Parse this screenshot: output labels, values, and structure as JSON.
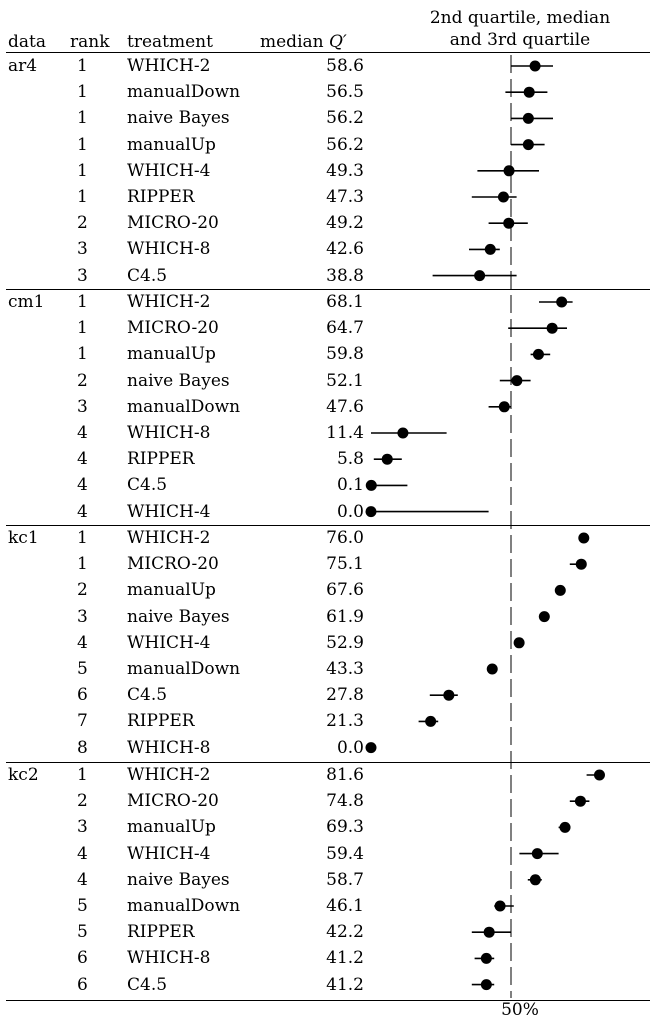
{
  "header": {
    "data": "data",
    "rank": "rank",
    "treatment": "treatment",
    "median_prefix": "median ",
    "median_var": "Q′",
    "quartile_line1": "2nd quartile, median",
    "quartile_line2": "and 3rd quartile"
  },
  "footer_label": "50%",
  "chart_data": {
    "type": "quartile-plot",
    "x_range": [
      0,
      100
    ],
    "reference_line": 50,
    "groups": [
      {
        "name": "ar4",
        "rows": [
          {
            "rank": "1",
            "treatment": "WHICH-2",
            "median": "58.6",
            "q1": 50,
            "q3": 65
          },
          {
            "rank": "1",
            "treatment": "manualDown",
            "median": "56.5",
            "q1": 48,
            "q3": 63
          },
          {
            "rank": "1",
            "treatment": "naive Bayes",
            "median": "56.2",
            "q1": 50,
            "q3": 65
          },
          {
            "rank": "1",
            "treatment": "manualUp",
            "median": "56.2",
            "q1": 50,
            "q3": 62
          },
          {
            "rank": "1",
            "treatment": "WHICH-4",
            "median": "49.3",
            "q1": 38,
            "q3": 60
          },
          {
            "rank": "1",
            "treatment": "RIPPER",
            "median": "47.3",
            "q1": 36,
            "q3": 52
          },
          {
            "rank": "2",
            "treatment": "MICRO-20",
            "median": "49.2",
            "q1": 42,
            "q3": 56
          },
          {
            "rank": "3",
            "treatment": "WHICH-8",
            "median": "42.6",
            "q1": 35,
            "q3": 46
          },
          {
            "rank": "3",
            "treatment": "C4.5",
            "median": "38.8",
            "q1": 22,
            "q3": 52
          }
        ]
      },
      {
        "name": "cm1",
        "rows": [
          {
            "rank": "1",
            "treatment": "WHICH-2",
            "median": "68.1",
            "q1": 60,
            "q3": 72
          },
          {
            "rank": "1",
            "treatment": "MICRO-20",
            "median": "64.7",
            "q1": 49,
            "q3": 70
          },
          {
            "rank": "1",
            "treatment": "manualUp",
            "median": "59.8",
            "q1": 57,
            "q3": 64
          },
          {
            "rank": "2",
            "treatment": "naive Bayes",
            "median": "52.1",
            "q1": 46,
            "q3": 57
          },
          {
            "rank": "3",
            "treatment": "manualDown",
            "median": "47.6",
            "q1": 42,
            "q3": 50
          },
          {
            "rank": "4",
            "treatment": "WHICH-8",
            "median": "11.4",
            "q1": 0,
            "q3": 27
          },
          {
            "rank": "4",
            "treatment": "RIPPER",
            "median": "5.8",
            "q1": 1,
            "q3": 11
          },
          {
            "rank": "4",
            "treatment": "C4.5",
            "median": "0.1",
            "q1": 0,
            "q3": 13
          },
          {
            "rank": "4",
            "treatment": "WHICH-4",
            "median": "0.0",
            "q1": 0,
            "q3": 42
          }
        ]
      },
      {
        "name": "kc1",
        "rows": [
          {
            "rank": "1",
            "treatment": "WHICH-2",
            "median": "76.0",
            "q1": 75,
            "q3": 76
          },
          {
            "rank": "1",
            "treatment": "MICRO-20",
            "median": "75.1",
            "q1": 71,
            "q3": 76
          },
          {
            "rank": "2",
            "treatment": "manualUp",
            "median": "67.6",
            "q1": 67,
            "q3": 68
          },
          {
            "rank": "3",
            "treatment": "naive Bayes",
            "median": "61.9",
            "q1": 61,
            "q3": 62
          },
          {
            "rank": "4",
            "treatment": "WHICH-4",
            "median": "52.9",
            "q1": 52,
            "q3": 54
          },
          {
            "rank": "5",
            "treatment": "manualDown",
            "median": "43.3",
            "q1": 43,
            "q3": 44
          },
          {
            "rank": "6",
            "treatment": "C4.5",
            "median": "27.8",
            "q1": 21,
            "q3": 31
          },
          {
            "rank": "7",
            "treatment": "RIPPER",
            "median": "21.3",
            "q1": 17,
            "q3": 24
          },
          {
            "rank": "8",
            "treatment": "WHICH-8",
            "median": "0.0",
            "q1": 0,
            "q3": 0
          }
        ]
      },
      {
        "name": "kc2",
        "rows": [
          {
            "rank": "1",
            "treatment": "WHICH-2",
            "median": "81.6",
            "q1": 77,
            "q3": 83
          },
          {
            "rank": "2",
            "treatment": "MICRO-20",
            "median": "74.8",
            "q1": 71,
            "q3": 78
          },
          {
            "rank": "3",
            "treatment": "manualUp",
            "median": "69.3",
            "q1": 67,
            "q3": 71
          },
          {
            "rank": "4",
            "treatment": "WHICH-4",
            "median": "59.4",
            "q1": 53,
            "q3": 67
          },
          {
            "rank": "4",
            "treatment": "naive Bayes",
            "median": "58.7",
            "q1": 56,
            "q3": 61
          },
          {
            "rank": "5",
            "treatment": "manualDown",
            "median": "46.1",
            "q1": 44,
            "q3": 51
          },
          {
            "rank": "5",
            "treatment": "RIPPER",
            "median": "42.2",
            "q1": 36,
            "q3": 50
          },
          {
            "rank": "6",
            "treatment": "WHICH-8",
            "median": "41.2",
            "q1": 37,
            "q3": 44
          },
          {
            "rank": "6",
            "treatment": "C4.5",
            "median": "41.2",
            "q1": 36,
            "q3": 44
          }
        ]
      }
    ]
  }
}
